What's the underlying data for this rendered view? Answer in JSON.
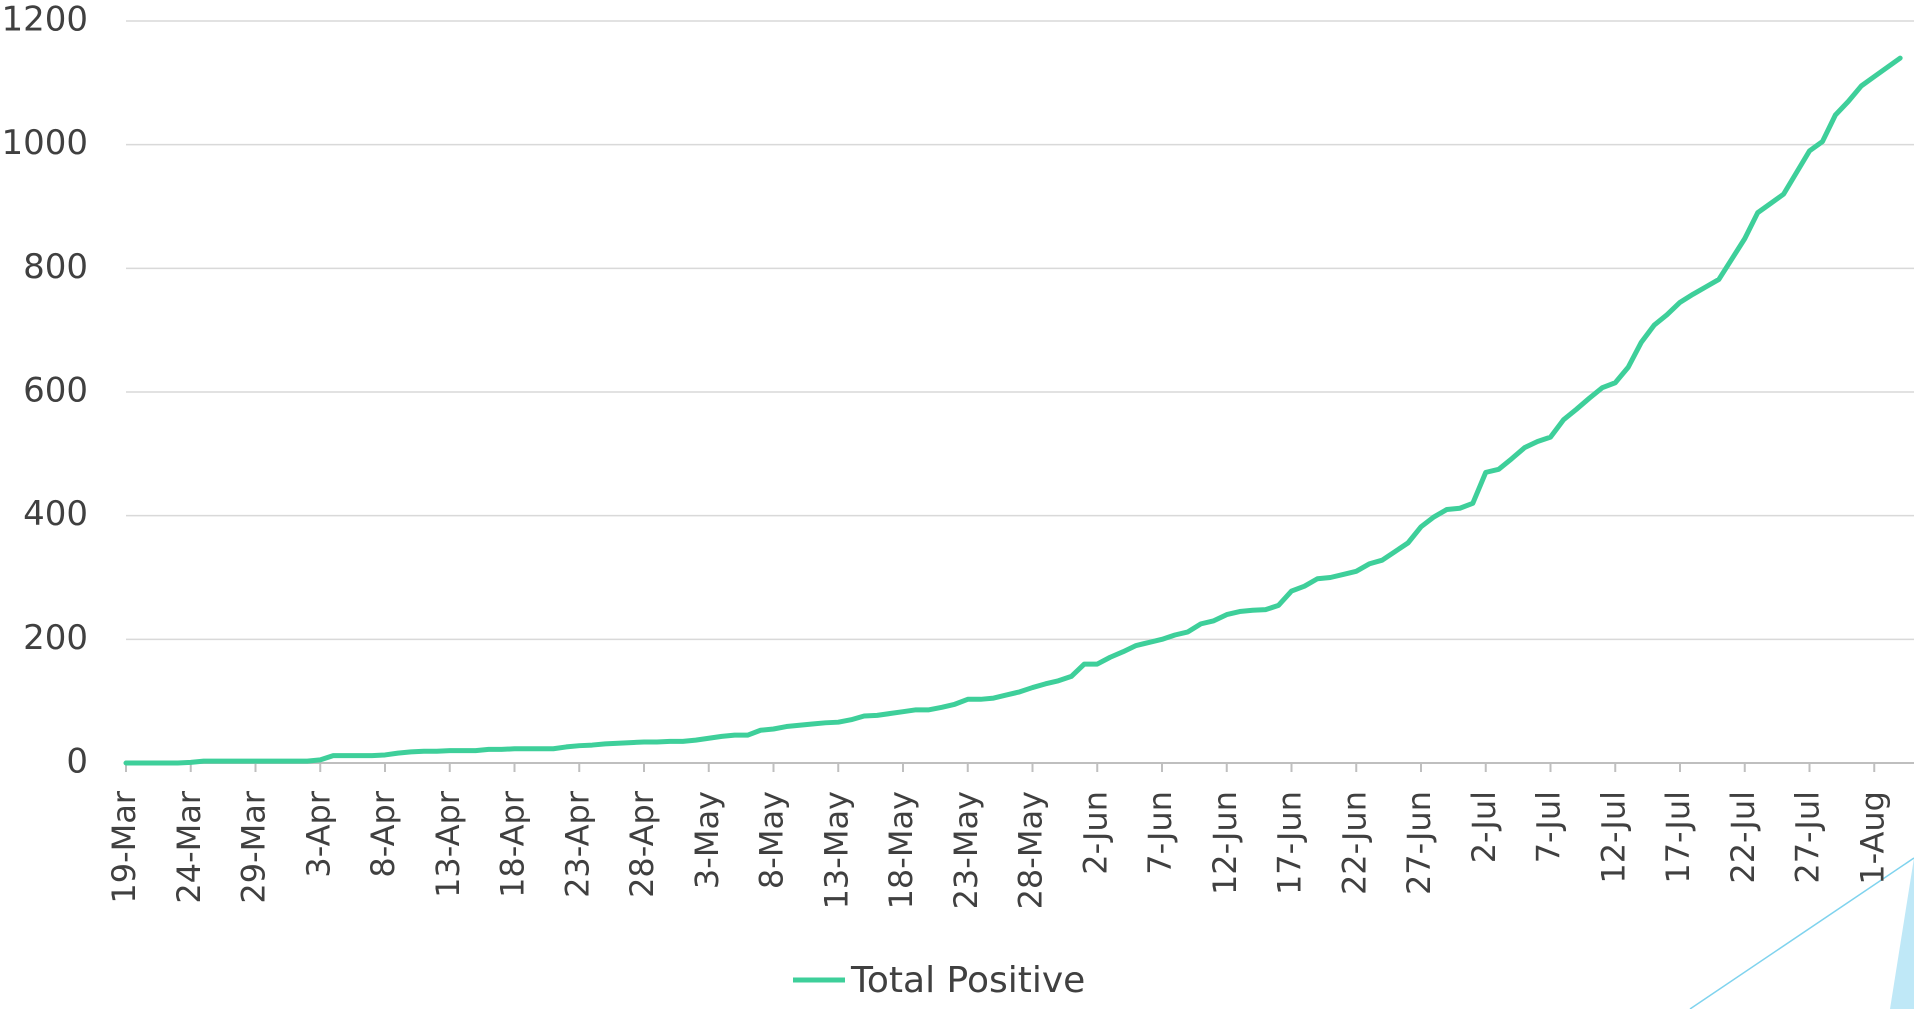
{
  "chart_data": {
    "type": "line",
    "categories": [
      "19-Mar",
      null,
      null,
      null,
      null,
      "24-Mar",
      null,
      null,
      null,
      null,
      "29-Mar",
      null,
      null,
      null,
      null,
      "3-Apr",
      null,
      null,
      null,
      null,
      "8-Apr",
      null,
      null,
      null,
      null,
      "13-Apr",
      null,
      null,
      null,
      null,
      "18-Apr",
      null,
      null,
      null,
      null,
      "23-Apr",
      null,
      null,
      null,
      null,
      "28-Apr",
      null,
      null,
      null,
      null,
      "3-May",
      null,
      null,
      null,
      null,
      "8-May",
      null,
      null,
      null,
      null,
      "13-May",
      null,
      null,
      null,
      null,
      "18-May",
      null,
      null,
      null,
      null,
      "23-May",
      null,
      null,
      null,
      null,
      "28-May",
      null,
      null,
      null,
      null,
      "2-Jun",
      null,
      null,
      null,
      null,
      "7-Jun",
      null,
      null,
      null,
      null,
      "12-Jun",
      null,
      null,
      null,
      null,
      "17-Jun",
      null,
      null,
      null,
      null,
      "22-Jun",
      null,
      null,
      null,
      null,
      "27-Jun",
      null,
      null,
      null,
      null,
      "2-Jul",
      null,
      null,
      null,
      null,
      "7-Jul",
      null,
      null,
      null,
      null,
      "12-Jul",
      null,
      null,
      null,
      null,
      "17-Jul",
      null,
      null,
      null,
      null,
      "22-Jul",
      null,
      null,
      null,
      null,
      "27-Jul",
      null,
      null,
      null,
      null,
      "1-Aug",
      null,
      null
    ],
    "series": [
      {
        "name": "Total Positive",
        "color": "#3ecf9a",
        "values": [
          0,
          0,
          0,
          0,
          0,
          1,
          3,
          3,
          3,
          3,
          3,
          3,
          3,
          3,
          3,
          5,
          12,
          12,
          12,
          12,
          13,
          16,
          18,
          19,
          19,
          20,
          20,
          20,
          22,
          22,
          23,
          23,
          23,
          23,
          26,
          28,
          29,
          31,
          32,
          33,
          34,
          34,
          35,
          35,
          37,
          40,
          43,
          45,
          45,
          53,
          55,
          59,
          61,
          63,
          65,
          66,
          70,
          76,
          77,
          80,
          83,
          86,
          86,
          90,
          95,
          103,
          103,
          105,
          110,
          115,
          122,
          128,
          133,
          140,
          160,
          160,
          171,
          180,
          190,
          195,
          200,
          207,
          212,
          225,
          230,
          240,
          245,
          247,
          248,
          255,
          278,
          286,
          298,
          300,
          305,
          310,
          322,
          328,
          342,
          356,
          382,
          398,
          410,
          412,
          420,
          470,
          475,
          492,
          510,
          520,
          527,
          555,
          572,
          590,
          607,
          615,
          640,
          680,
          708,
          725,
          745,
          758,
          770,
          782,
          815,
          848,
          890,
          905,
          920,
          955,
          990,
          1005,
          1048,
          1070,
          1095,
          1110,
          1125,
          1140
        ]
      }
    ],
    "ylim": [
      0,
      1200
    ],
    "yticks": [
      0,
      200,
      400,
      600,
      800,
      1000,
      1200
    ],
    "grid": true,
    "legend": "bottom"
  }
}
